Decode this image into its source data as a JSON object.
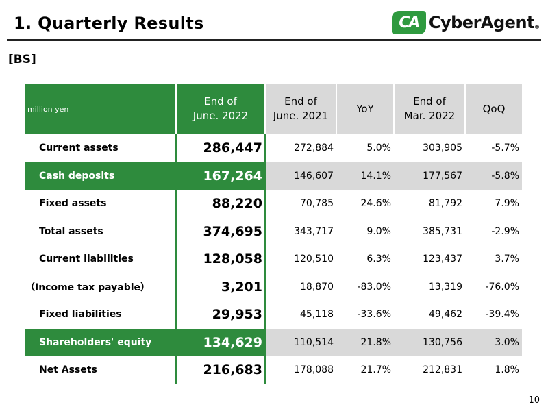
{
  "header": {
    "title": "1.  Quarterly Results",
    "logo_mark": "CA",
    "logo_text": "CyberAgent",
    "logo_reg": "®"
  },
  "section_label": "[BS]",
  "table": {
    "columns": [
      "million yen",
      "End of\nJune. 2022",
      "End of\nJune. 2021",
      "YoY",
      "End of\nMar. 2022",
      "QoQ"
    ],
    "rows": [
      {
        "label": "Current assets",
        "highlight": false,
        "values": [
          "286,447",
          "272,884",
          "5.0%",
          "303,905",
          "-5.7%"
        ]
      },
      {
        "label": "Cash deposits",
        "highlight": true,
        "values": [
          "167,264",
          "146,607",
          "14.1%",
          "177,567",
          "-5.8%"
        ]
      },
      {
        "label": "Fixed assets",
        "highlight": false,
        "values": [
          "88,220",
          "70,785",
          "24.6%",
          "81,792",
          "7.9%"
        ]
      },
      {
        "label": "Total assets",
        "highlight": false,
        "values": [
          "374,695",
          "343,717",
          "9.0%",
          "385,731",
          "-2.9%"
        ]
      },
      {
        "label": "Current liabilities",
        "highlight": false,
        "values": [
          "128,058",
          "120,510",
          "6.3%",
          "123,437",
          "3.7%"
        ]
      },
      {
        "label": "（Income tax payable）",
        "highlight": false,
        "values": [
          "3,201",
          "18,870",
          "-83.0%",
          "13,319",
          "-76.0%"
        ]
      },
      {
        "label": "Fixed liabilities",
        "highlight": false,
        "values": [
          "29,953",
          "45,118",
          "-33.6%",
          "49,462",
          "-39.4%"
        ]
      },
      {
        "label": "Shareholders' equity",
        "highlight": true,
        "values": [
          "134,629",
          "110,514",
          "21.8%",
          "130,756",
          "3.0%"
        ]
      },
      {
        "label": "Net Assets",
        "highlight": false,
        "values": [
          "216,683",
          "178,088",
          "21.7%",
          "212,831",
          "1.8%"
        ]
      }
    ]
  },
  "page_number": "10",
  "colors": {
    "brand_green": "#2e8b3d",
    "header_gray": "#d9d9d9"
  }
}
